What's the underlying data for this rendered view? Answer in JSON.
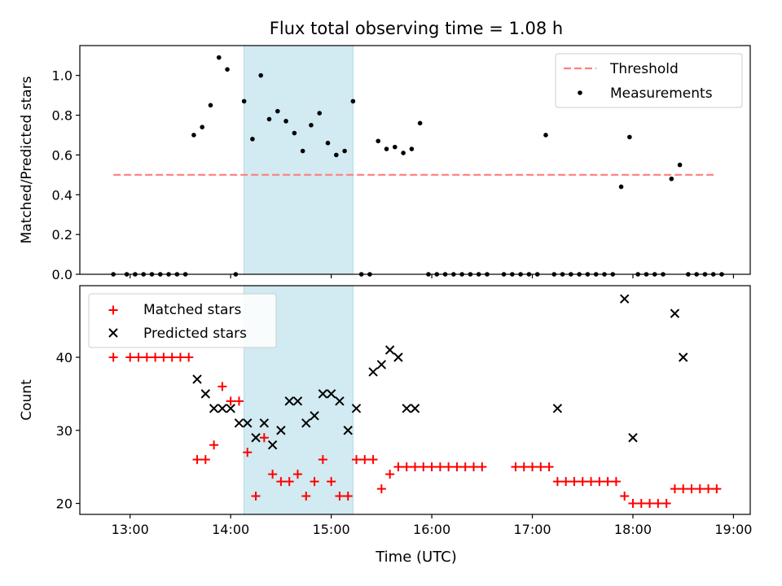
{
  "figure": {
    "title": "Flux total observing time = 1.08 h",
    "xlabel": "Time (UTC)",
    "x_tick_labels": [
      "13:00",
      "14:00",
      "15:00",
      "16:00",
      "17:00",
      "18:00",
      "19:00"
    ]
  },
  "colors": {
    "threshold": "#ff7f7f",
    "measurements": "#000000",
    "matched": "#ff0000",
    "predicted": "#000000",
    "shade": "#add8e6"
  },
  "chart_data": [
    {
      "type": "scatter",
      "panel": "top",
      "ylabel": "Matched/Predicted stars",
      "xlim": [
        "12:30",
        "19:10"
      ],
      "ylim": [
        0,
        1.15
      ],
      "y_ticks": [
        0.0,
        0.2,
        0.4,
        0.6,
        0.8,
        1.0
      ],
      "y_tick_labels": [
        "0.0",
        "0.2",
        "0.4",
        "0.6",
        "0.8",
        "1.0"
      ],
      "shaded_span": [
        "14:08",
        "15:13"
      ],
      "threshold": {
        "name": "Threshold",
        "y": 0.5,
        "x_range": [
          "12:50",
          "18:50"
        ]
      },
      "legend": {
        "position": "top-right",
        "entries": [
          "Threshold",
          "Measurements"
        ]
      },
      "series": [
        {
          "name": "Measurements",
          "marker": "dot",
          "x": [
            "12:50",
            "12:58",
            "13:03",
            "13:08",
            "13:13",
            "13:18",
            "13:23",
            "13:28",
            "13:33",
            "13:38",
            "13:43",
            "13:48",
            "13:53",
            "13:58",
            "14:03",
            "14:08",
            "14:13",
            "14:18",
            "14:23",
            "14:28",
            "14:33",
            "14:38",
            "14:43",
            "14:48",
            "14:53",
            "14:58",
            "15:03",
            "15:08",
            "15:13",
            "15:18",
            "15:23",
            "15:28",
            "15:33",
            "15:38",
            "15:43",
            "15:48",
            "15:53",
            "15:58",
            "16:03",
            "16:08",
            "16:13",
            "16:18",
            "16:23",
            "16:28",
            "16:33",
            "16:43",
            "16:48",
            "16:53",
            "16:58",
            "17:03",
            "17:08",
            "17:13",
            "17:18",
            "17:23",
            "17:28",
            "17:33",
            "17:38",
            "17:43",
            "17:48",
            "17:53",
            "17:58",
            "18:03",
            "18:08",
            "18:13",
            "18:18",
            "18:23",
            "18:28",
            "18:33",
            "18:38",
            "18:43",
            "18:48",
            "18:53"
          ],
          "y": [
            0,
            0,
            0,
            0,
            0,
            0,
            0,
            0,
            0,
            0.7,
            0.74,
            0.85,
            1.09,
            1.03,
            0,
            0.87,
            0.68,
            1.0,
            0.78,
            0.82,
            0.77,
            0.71,
            0.62,
            0.75,
            0.81,
            0.66,
            0.6,
            0.62,
            0.87,
            0,
            0,
            0.67,
            0.63,
            0.64,
            0.61,
            0.63,
            0.76,
            0,
            0,
            0,
            0,
            0,
            0,
            0,
            0,
            0,
            0,
            0,
            0,
            0,
            0.7,
            0,
            0,
            0,
            0,
            0,
            0,
            0,
            0,
            0.44,
            0.69,
            0,
            0,
            0,
            0,
            0.48,
            0.55,
            0,
            0,
            0,
            0,
            0
          ]
        }
      ]
    },
    {
      "type": "scatter",
      "panel": "bottom",
      "ylabel": "Count",
      "xlim": [
        "12:30",
        "19:10"
      ],
      "ylim": [
        18.5,
        49.8
      ],
      "y_ticks": [
        20,
        30,
        40
      ],
      "y_tick_labels": [
        "20",
        "30",
        "40"
      ],
      "shaded_span": [
        "14:08",
        "15:13"
      ],
      "legend": {
        "position": "top-left",
        "entries": [
          "Matched stars",
          "Predicted stars"
        ]
      },
      "series": [
        {
          "name": "Matched stars",
          "marker": "plus",
          "x": [
            "12:50",
            "13:00",
            "13:05",
            "13:10",
            "13:15",
            "13:20",
            "13:25",
            "13:30",
            "13:35",
            "13:40",
            "13:45",
            "13:50",
            "13:55",
            "14:00",
            "14:05",
            "14:10",
            "14:15",
            "14:20",
            "14:25",
            "14:30",
            "14:35",
            "14:40",
            "14:45",
            "14:50",
            "14:55",
            "15:00",
            "15:05",
            "15:10",
            "15:15",
            "15:20",
            "15:25",
            "15:30",
            "15:35",
            "15:40",
            "15:45",
            "15:50",
            "15:55",
            "16:00",
            "16:05",
            "16:10",
            "16:15",
            "16:20",
            "16:25",
            "16:30",
            "16:50",
            "16:55",
            "17:00",
            "17:05",
            "17:10",
            "17:15",
            "17:20",
            "17:25",
            "17:30",
            "17:35",
            "17:40",
            "17:45",
            "17:50",
            "17:55",
            "18:00",
            "18:05",
            "18:10",
            "18:15",
            "18:20",
            "18:25",
            "18:30",
            "18:35",
            "18:40",
            "18:45",
            "18:50"
          ],
          "y": [
            40,
            40,
            40,
            40,
            40,
            40,
            40,
            40,
            40,
            26,
            26,
            28,
            36,
            34,
            34,
            27,
            21,
            29,
            24,
            23,
            23,
            24,
            21,
            23,
            26,
            23,
            21,
            21,
            26,
            26,
            26,
            22,
            24,
            25,
            25,
            25,
            25,
            25,
            25,
            25,
            25,
            25,
            25,
            25,
            25,
            25,
            25,
            25,
            25,
            23,
            23,
            23,
            23,
            23,
            23,
            23,
            23,
            21,
            20,
            20,
            20,
            20,
            20,
            22,
            22,
            22,
            22,
            22,
            22
          ]
        },
        {
          "name": "Predicted stars",
          "marker": "x",
          "x": [
            "13:40",
            "13:45",
            "13:50",
            "13:55",
            "14:00",
            "14:05",
            "14:10",
            "14:15",
            "14:20",
            "14:25",
            "14:30",
            "14:35",
            "14:40",
            "14:45",
            "14:50",
            "14:55",
            "15:00",
            "15:05",
            "15:10",
            "15:15",
            "15:25",
            "15:30",
            "15:35",
            "15:40",
            "15:45",
            "15:50",
            "17:15",
            "17:55",
            "18:00",
            "18:25",
            "18:30"
          ],
          "y": [
            37,
            35,
            33,
            33,
            33,
            31,
            31,
            29,
            31,
            28,
            30,
            34,
            34,
            31,
            32,
            35,
            35,
            34,
            30,
            33,
            38,
            39,
            41,
            40,
            33,
            33,
            33,
            48,
            29,
            46,
            40
          ]
        }
      ]
    }
  ]
}
